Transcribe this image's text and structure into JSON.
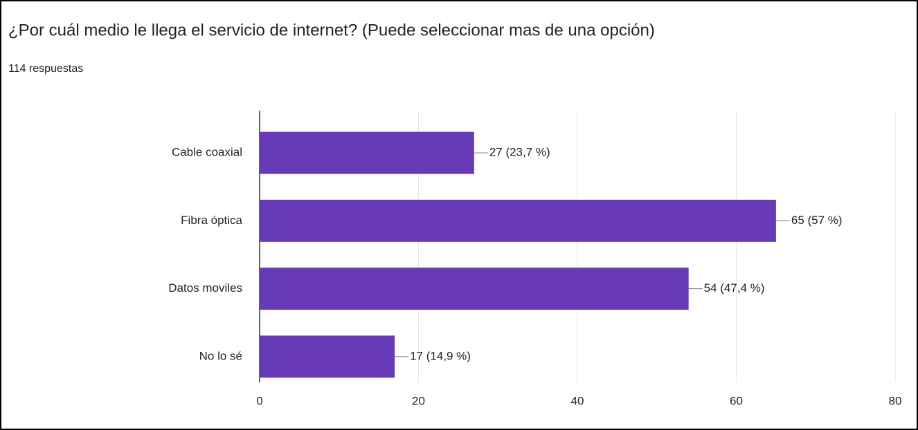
{
  "chart_data": {
    "type": "bar",
    "orientation": "horizontal",
    "title": "¿Por cuál medio le llega el servicio de internet? (Puede seleccionar mas de una opción)",
    "subtitle": "114 respuestas",
    "categories": [
      "Cable coaxial",
      "Fibra óptica",
      "Datos moviles",
      "No lo sé"
    ],
    "values": [
      27,
      65,
      54,
      17
    ],
    "value_labels": [
      "27 (23,7 %)",
      "65 (57 %)",
      "54 (47,4 %)",
      "17 (14,9 %)"
    ],
    "color": "#673ab7",
    "xlim": [
      0,
      80
    ],
    "xticks": [
      0,
      20,
      40,
      60,
      80
    ],
    "grid": true
  }
}
